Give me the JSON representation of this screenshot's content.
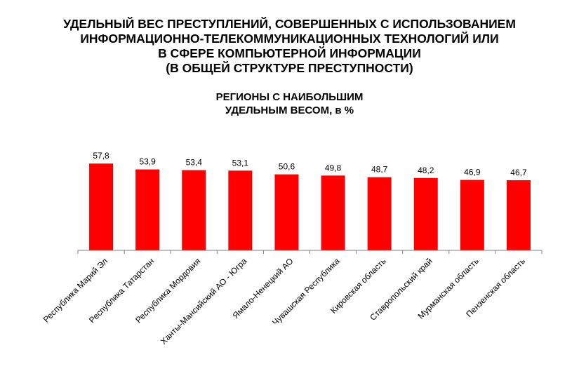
{
  "chart_data": {
    "type": "bar",
    "title": [
      "УДЕЛЬНЫЙ ВЕС ПРЕСТУПЛЕНИЙ, СОВЕРШЕННЫХ С ИСПОЛЬЗОВАНИЕМ",
      "ИНФОРМАЦИОННО-ТЕЛЕКОММУНИКАЦИОННЫХ ТЕХНОЛОГИЙ ИЛИ",
      "В СФЕРЕ КОМПЬЮТЕРНОЙ ИНФОРМАЦИИ",
      "(В ОБЩЕЙ СТРУКТУРЕ ПРЕСТУПНОСТИ)"
    ],
    "subtitle": [
      "РЕГИОНЫ С НАИБОЛЬШИМ",
      "УДЕЛЬНЫМ ВЕСОМ, в %"
    ],
    "categories": [
      "Республика Марий Эл",
      "Республика Татарстан",
      "Республика Мордовия",
      "Ханты-Мансийский АО - Югра",
      "Ямало-Ненецкий АО",
      "Чувашская Республика",
      "Кировская область",
      "Ставропольский край",
      "Мурманская область",
      "Пензенская область"
    ],
    "values": [
      57.8,
      53.9,
      53.4,
      53.1,
      50.6,
      49.8,
      48.7,
      48.2,
      46.9,
      46.7
    ],
    "value_labels": [
      "57,8",
      "53,9",
      "53,4",
      "53,1",
      "50,6",
      "49,8",
      "48,7",
      "48,2",
      "46,9",
      "46,7"
    ],
    "ylim": [
      0,
      60
    ],
    "grid": false,
    "legend": "none",
    "bar_color": "#ff0000"
  }
}
